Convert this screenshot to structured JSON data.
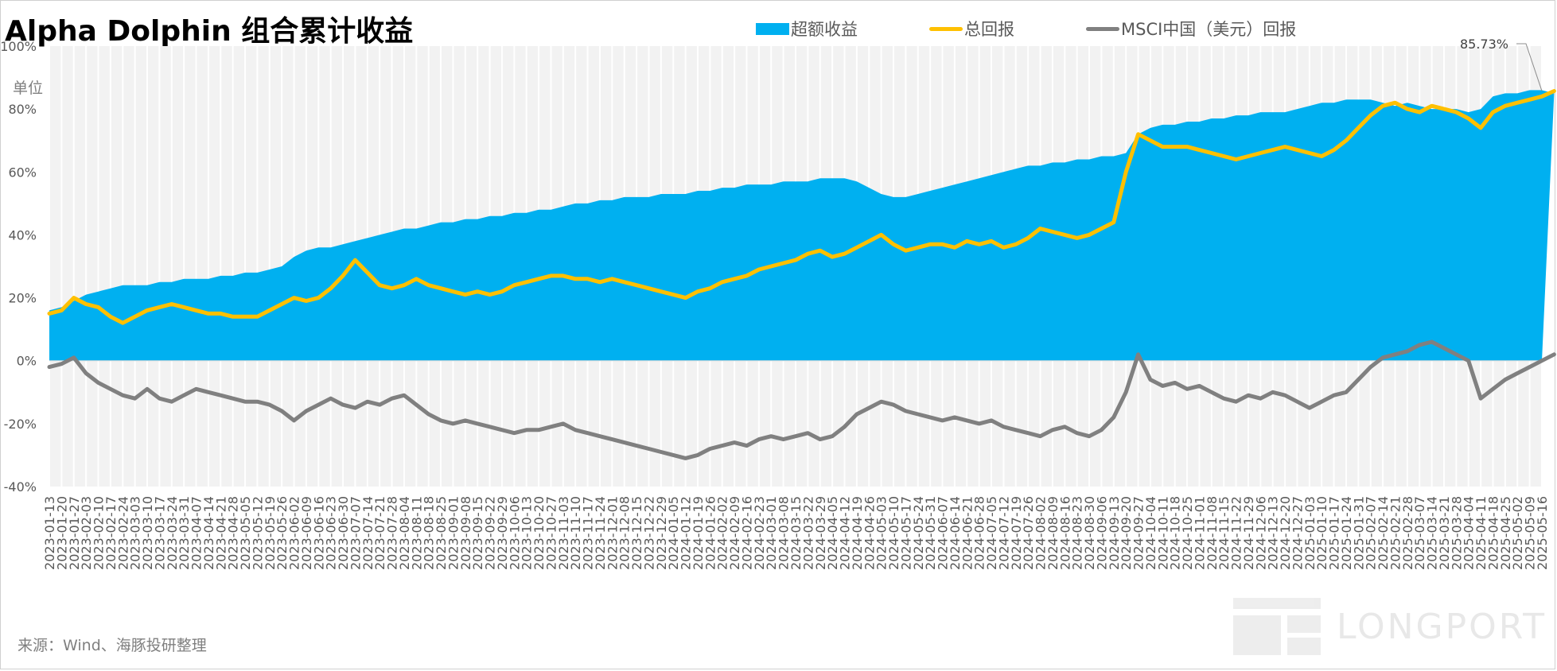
{
  "title": "Alpha Dolphin 组合累计收益",
  "unit_label": "单位",
  "unit_symbol": "%",
  "source": "来源：Wind、海豚投研整理",
  "watermark": "LONGPORT",
  "legend": [
    {
      "label": "超额收益",
      "kind": "area",
      "color": "#00b0f0",
      "icon": "legend-area-swatch"
    },
    {
      "label": "总回报",
      "kind": "line",
      "color": "#ffc000",
      "icon": "legend-line-swatch"
    },
    {
      "label": "MSCI中国（美元）回报",
      "kind": "line",
      "color": "#808080",
      "icon": "legend-line-swatch"
    }
  ],
  "chart_data": {
    "type": "line",
    "title": "Alpha Dolphin 组合累计收益",
    "ylabel": "单位 %",
    "ylim": [
      -40,
      100
    ],
    "yticks": [
      -40,
      -20,
      0,
      20,
      40,
      60,
      80,
      100
    ],
    "ytick_labels": [
      "-40%",
      "-20%",
      "0%",
      "20%",
      "40%",
      "60%",
      "80%",
      "100%"
    ],
    "grid": false,
    "legend_position": "top",
    "x_range": [
      "2023-01-13",
      "2025-05-16"
    ],
    "x_tick_labels": [
      "2023-01-13",
      "2023-01-20",
      "2023-01-27",
      "2023-02-03",
      "2023-02-10",
      "2023-02-17",
      "2023-02-24",
      "2023-03-03",
      "2023-03-10",
      "2023-03-17",
      "2023-03-24",
      "2023-03-31",
      "2023-04-07",
      "2023-04-14",
      "2023-04-21",
      "2023-04-28",
      "2023-05-05",
      "2023-05-12",
      "2023-05-19",
      "2023-05-26",
      "2023-06-02",
      "2023-06-09",
      "2023-06-16",
      "2023-06-23",
      "2023-06-30",
      "2023-07-07",
      "2023-07-14",
      "2023-07-21",
      "2023-07-28",
      "2023-08-04",
      "2023-08-11",
      "2023-08-18",
      "2023-08-25",
      "2023-09-01",
      "2023-09-08",
      "2023-09-15",
      "2023-09-22",
      "2023-09-29",
      "2023-10-06",
      "2023-10-13",
      "2023-10-20",
      "2023-10-27",
      "2023-11-03",
      "2023-11-10",
      "2023-11-17",
      "2023-11-24",
      "2023-12-01",
      "2023-12-08",
      "2023-12-15",
      "2023-12-22",
      "2023-12-29",
      "2024-01-05",
      "2024-01-12",
      "2024-01-19",
      "2024-01-26",
      "2024-02-02",
      "2024-02-09",
      "2024-02-16",
      "2024-02-23",
      "2024-03-01",
      "2024-03-08",
      "2024-03-15",
      "2024-03-22",
      "2024-03-29",
      "2024-04-05",
      "2024-04-12",
      "2024-04-19",
      "2024-04-26",
      "2024-05-03",
      "2024-05-10",
      "2024-05-17",
      "2024-05-24",
      "2024-05-31",
      "2024-06-07",
      "2024-06-14",
      "2024-06-21",
      "2024-06-28",
      "2024-07-05",
      "2024-07-12",
      "2024-07-19",
      "2024-07-26",
      "2024-08-02",
      "2024-08-09",
      "2024-08-16",
      "2024-08-23",
      "2024-08-30",
      "2024-09-06",
      "2024-09-13",
      "2024-09-20",
      "2024-09-27",
      "2024-10-04",
      "2024-10-11",
      "2024-10-18",
      "2024-10-25",
      "2024-11-01",
      "2024-11-08",
      "2024-11-15",
      "2024-11-22",
      "2024-11-29",
      "2024-12-06",
      "2024-12-13",
      "2024-12-20",
      "2024-12-27",
      "2025-01-03",
      "2025-01-10",
      "2025-01-17",
      "2025-01-24",
      "2025-01-31",
      "2025-02-07",
      "2025-02-14",
      "2025-02-21",
      "2025-02-28",
      "2025-03-07",
      "2025-03-14",
      "2025-03-21",
      "2025-03-28",
      "2025-04-04",
      "2025-04-11",
      "2025-04-18",
      "2025-04-25",
      "2025-05-02",
      "2025-05-09",
      "2025-05-16"
    ],
    "annotation": {
      "text": "85.73%",
      "series": "总回报",
      "x": "2025-05-16",
      "y": 85.73
    },
    "series": [
      {
        "name": "超额收益",
        "type": "area",
        "color": "#00b0f0",
        "values": [
          16,
          17,
          19,
          21,
          22,
          23,
          24,
          24,
          24,
          25,
          25,
          26,
          26,
          26,
          27,
          27,
          28,
          28,
          29,
          30,
          33,
          35,
          36,
          36,
          37,
          38,
          39,
          40,
          41,
          42,
          42,
          43,
          44,
          44,
          45,
          45,
          46,
          46,
          47,
          47,
          48,
          48,
          49,
          50,
          50,
          51,
          51,
          52,
          52,
          52,
          53,
          53,
          53,
          54,
          54,
          55,
          55,
          56,
          56,
          56,
          57,
          57,
          57,
          58,
          58,
          58,
          57,
          55,
          53,
          52,
          52,
          53,
          54,
          55,
          56,
          57,
          58,
          59,
          60,
          61,
          62,
          62,
          63,
          63,
          64,
          64,
          65,
          65,
          66,
          72,
          74,
          75,
          75,
          76,
          76,
          77,
          77,
          78,
          78,
          79,
          79,
          79,
          80,
          81,
          82,
          82,
          83,
          83,
          83,
          82,
          81,
          82,
          81,
          80,
          80,
          80,
          79,
          80,
          84,
          85,
          85,
          86,
          86,
          85
        ]
      },
      {
        "name": "总回报",
        "type": "line",
        "color": "#ffc000",
        "values": [
          15,
          16,
          20,
          18,
          17,
          14,
          12,
          14,
          16,
          17,
          18,
          17,
          16,
          15,
          15,
          14,
          14,
          14,
          16,
          18,
          20,
          19,
          20,
          23,
          27,
          32,
          28,
          24,
          23,
          24,
          26,
          24,
          23,
          22,
          21,
          22,
          21,
          22,
          24,
          25,
          26,
          27,
          27,
          26,
          26,
          25,
          26,
          25,
          24,
          23,
          22,
          21,
          20,
          22,
          23,
          25,
          26,
          27,
          29,
          30,
          31,
          32,
          34,
          35,
          33,
          34,
          36,
          38,
          40,
          37,
          35,
          36,
          37,
          37,
          36,
          38,
          37,
          38,
          36,
          37,
          39,
          42,
          41,
          40,
          39,
          40,
          42,
          44,
          60,
          72,
          70,
          68,
          68,
          68,
          67,
          66,
          65,
          64,
          65,
          66,
          67,
          68,
          67,
          66,
          65,
          67,
          70,
          74,
          78,
          81,
          82,
          80,
          79,
          81,
          80,
          79,
          77,
          74,
          79,
          81,
          82,
          83,
          84,
          85.73
        ]
      },
      {
        "name": "MSCI中国（美元）回报",
        "type": "line",
        "color": "#808080",
        "values": [
          -2,
          -1,
          1,
          -4,
          -7,
          -9,
          -11,
          -12,
          -9,
          -12,
          -13,
          -11,
          -9,
          -10,
          -11,
          -12,
          -13,
          -13,
          -14,
          -16,
          -19,
          -16,
          -14,
          -12,
          -14,
          -15,
          -13,
          -14,
          -12,
          -11,
          -14,
          -17,
          -19,
          -20,
          -19,
          -20,
          -21,
          -22,
          -23,
          -22,
          -22,
          -21,
          -20,
          -22,
          -23,
          -24,
          -25,
          -26,
          -27,
          -28,
          -29,
          -30,
          -31,
          -30,
          -28,
          -27,
          -26,
          -27,
          -25,
          -24,
          -25,
          -24,
          -23,
          -25,
          -24,
          -21,
          -17,
          -15,
          -13,
          -14,
          -16,
          -17,
          -18,
          -19,
          -18,
          -19,
          -20,
          -19,
          -21,
          -22,
          -23,
          -24,
          -22,
          -21,
          -23,
          -24,
          -22,
          -18,
          -10,
          2,
          -6,
          -8,
          -7,
          -9,
          -8,
          -10,
          -12,
          -13,
          -11,
          -12,
          -10,
          -11,
          -13,
          -15,
          -13,
          -11,
          -10,
          -6,
          -2,
          1,
          2,
          3,
          5,
          6,
          4,
          2,
          0,
          -12,
          -9,
          -6,
          -4,
          -2,
          0,
          2
        ]
      }
    ]
  }
}
